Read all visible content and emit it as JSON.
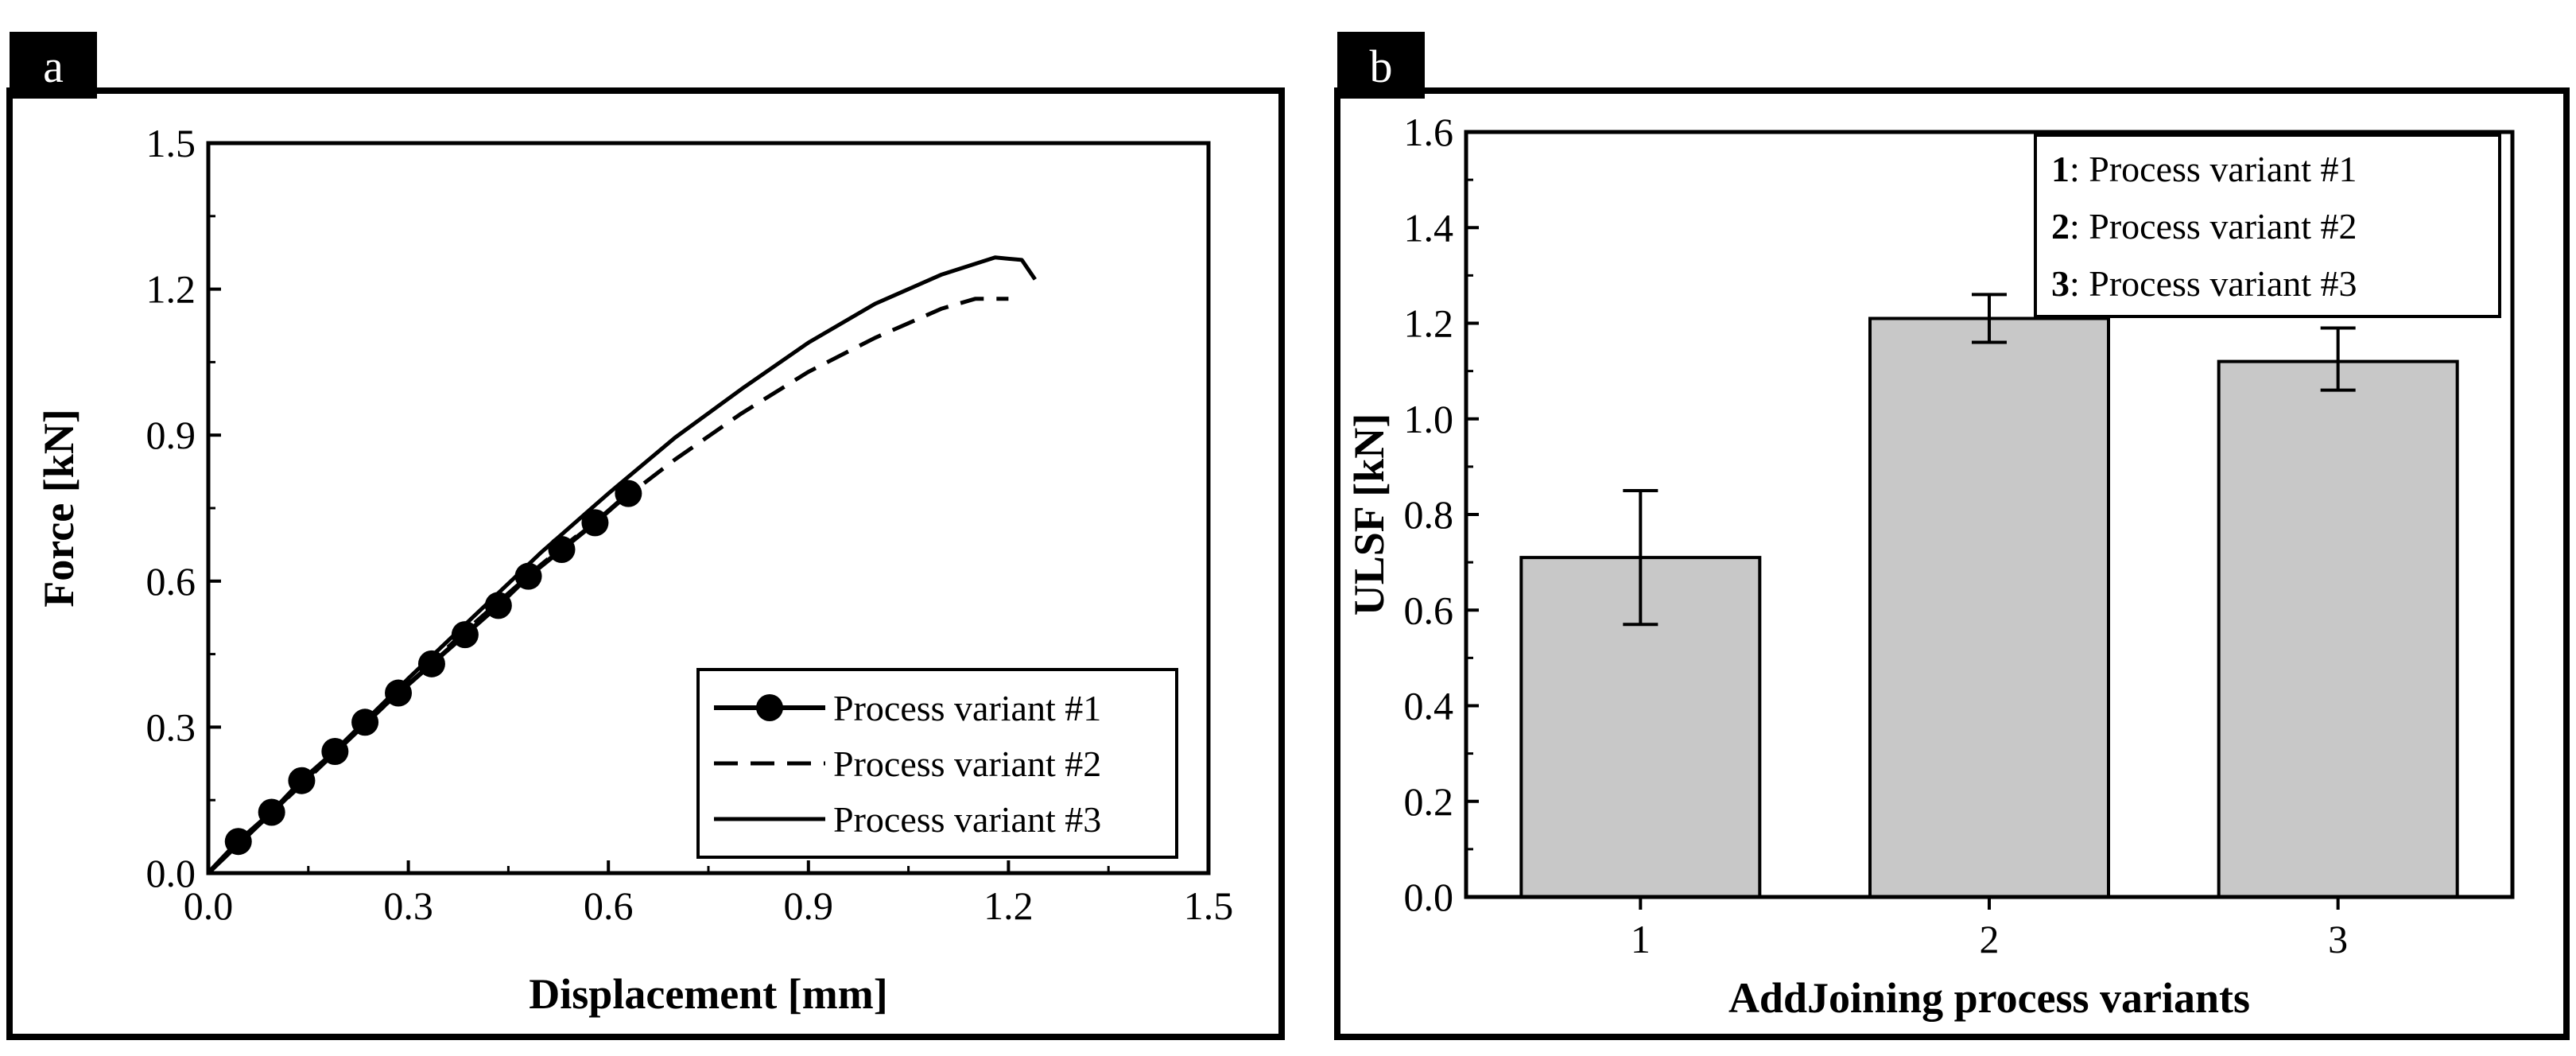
{
  "chart_data": [
    {
      "panel": "a",
      "type": "line",
      "xlabel": "Displacement [mm]",
      "ylabel": "Force [kN]",
      "xlim": [
        0,
        1.5
      ],
      "ylim": [
        0,
        1.5
      ],
      "xticks": [
        "0.0",
        "0.3",
        "0.6",
        "0.9",
        "1.2",
        "1.5"
      ],
      "yticks": [
        "0.0",
        "0.3",
        "0.6",
        "0.9",
        "1.2",
        "1.5"
      ],
      "grid": false,
      "legend_position": "bottom-right",
      "series": [
        {
          "name": "Process variant #1",
          "style": "solid-markers",
          "points": [
            [
              0.0,
              0.0
            ],
            [
              0.045,
              0.065
            ],
            [
              0.095,
              0.125
            ],
            [
              0.14,
              0.19
            ],
            [
              0.19,
              0.25
            ],
            [
              0.235,
              0.31
            ],
            [
              0.285,
              0.37
            ],
            [
              0.335,
              0.43
            ],
            [
              0.385,
              0.49
            ],
            [
              0.435,
              0.55
            ],
            [
              0.48,
              0.61
            ],
            [
              0.53,
              0.665
            ],
            [
              0.58,
              0.72
            ],
            [
              0.63,
              0.78
            ]
          ]
        },
        {
          "name": "Process variant #2",
          "style": "dashed",
          "points": [
            [
              0.0,
              0.0
            ],
            [
              0.1,
              0.13
            ],
            [
              0.2,
              0.26
            ],
            [
              0.3,
              0.39
            ],
            [
              0.4,
              0.515
            ],
            [
              0.5,
              0.635
            ],
            [
              0.6,
              0.745
            ],
            [
              0.7,
              0.85
            ],
            [
              0.8,
              0.945
            ],
            [
              0.9,
              1.03
            ],
            [
              1.0,
              1.1
            ],
            [
              1.1,
              1.16
            ],
            [
              1.15,
              1.18
            ],
            [
              1.2,
              1.18
            ]
          ]
        },
        {
          "name": "Process variant #3",
          "style": "solid",
          "points": [
            [
              0.0,
              0.0
            ],
            [
              0.1,
              0.13
            ],
            [
              0.2,
              0.265
            ],
            [
              0.3,
              0.4
            ],
            [
              0.4,
              0.53
            ],
            [
              0.5,
              0.66
            ],
            [
              0.6,
              0.78
            ],
            [
              0.7,
              0.895
            ],
            [
              0.8,
              0.995
            ],
            [
              0.9,
              1.09
            ],
            [
              1.0,
              1.17
            ],
            [
              1.1,
              1.23
            ],
            [
              1.18,
              1.265
            ],
            [
              1.22,
              1.26
            ],
            [
              1.24,
              1.22
            ]
          ]
        }
      ]
    },
    {
      "panel": "b",
      "type": "bar",
      "xlabel": "AddJoining process variants",
      "ylabel": "ULSF [kN]",
      "ylim": [
        0,
        1.6
      ],
      "yticks": [
        "0.0",
        "0.2",
        "0.4",
        "0.6",
        "0.8",
        "1.0",
        "1.2",
        "1.4",
        "1.6"
      ],
      "categories": [
        "1",
        "2",
        "3"
      ],
      "values": [
        0.71,
        1.21,
        1.12
      ],
      "error_low": [
        0.57,
        1.16,
        1.06
      ],
      "error_high": [
        0.85,
        1.26,
        1.19
      ],
      "bar_color": "#c8c8c8",
      "grid": false,
      "legend_position": "top-right",
      "legend": [
        {
          "num": "1",
          "text": ": Process variant #1"
        },
        {
          "num": "2",
          "text": ": Process variant #2"
        },
        {
          "num": "3",
          "text": ": Process variant #3"
        }
      ]
    }
  ]
}
